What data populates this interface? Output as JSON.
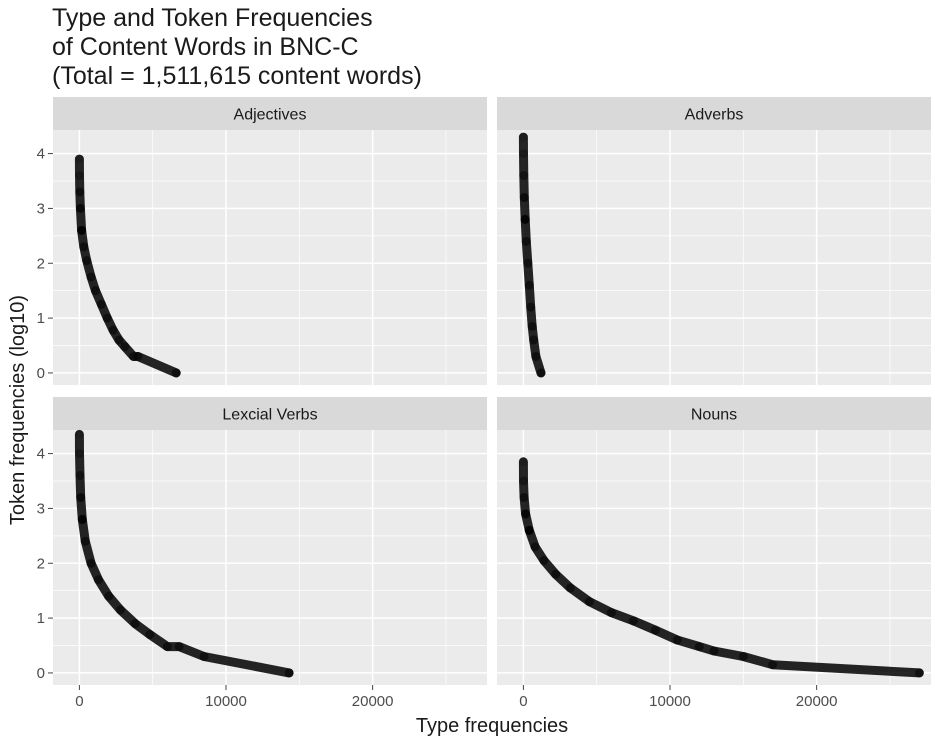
{
  "chart_data": {
    "type": "scatter",
    "title_lines": [
      "Type and Token Frequencies",
      "of Content Words in BNC-C",
      "(Total = 1,511,615 content words)"
    ],
    "xlabel": "Type frequencies",
    "ylabel": "Token frequencies (log10)",
    "xlim": [
      -1800,
      27800
    ],
    "ylim": [
      -0.22,
      4.43
    ],
    "x_ticks": [
      0,
      10000,
      20000
    ],
    "x_tick_labels": [
      "0",
      "10000",
      "20000"
    ],
    "y_ticks": [
      0,
      1,
      2,
      3,
      4
    ],
    "y_tick_labels": [
      "0",
      "1",
      "2",
      "3",
      "4"
    ],
    "grid": true,
    "point_color": "#000000",
    "panel_background": "#ebebeb",
    "strip_background": "#d9d9d9",
    "panels": [
      {
        "name": "Adjectives",
        "n_types": 6600,
        "max_token_log10": 3.9,
        "points": [
          [
            0,
            3.9
          ],
          [
            10,
            3.6
          ],
          [
            30,
            3.3
          ],
          [
            70,
            3.0
          ],
          [
            150,
            2.6
          ],
          [
            300,
            2.3
          ],
          [
            500,
            2.05
          ],
          [
            800,
            1.75
          ],
          [
            1100,
            1.5
          ],
          [
            1500,
            1.25
          ],
          [
            1900,
            1.0
          ],
          [
            2300,
            0.78
          ],
          [
            2700,
            0.6
          ],
          [
            3100,
            0.48
          ],
          [
            3700,
            0.3
          ],
          [
            4000,
            0.3
          ],
          [
            6600,
            0.0
          ]
        ]
      },
      {
        "name": "Adverbs",
        "n_types": 1200,
        "max_token_log10": 4.3,
        "points": [
          [
            0,
            4.3
          ],
          [
            10,
            4.0
          ],
          [
            25,
            3.6
          ],
          [
            60,
            3.2
          ],
          [
            120,
            2.8
          ],
          [
            200,
            2.4
          ],
          [
            300,
            2.0
          ],
          [
            400,
            1.6
          ],
          [
            500,
            1.2
          ],
          [
            600,
            0.85
          ],
          [
            700,
            0.6
          ],
          [
            850,
            0.3
          ],
          [
            1200,
            0.0
          ]
        ]
      },
      {
        "name": "Lexcial Verbs",
        "n_types": 14300,
        "max_token_log10": 4.35,
        "points": [
          [
            0,
            4.35
          ],
          [
            10,
            4.0
          ],
          [
            40,
            3.6
          ],
          [
            90,
            3.2
          ],
          [
            200,
            2.8
          ],
          [
            400,
            2.4
          ],
          [
            800,
            2.0
          ],
          [
            1300,
            1.7
          ],
          [
            2000,
            1.4
          ],
          [
            2800,
            1.15
          ],
          [
            3800,
            0.9
          ],
          [
            4800,
            0.7
          ],
          [
            6000,
            0.48
          ],
          [
            6800,
            0.48
          ],
          [
            8500,
            0.3
          ],
          [
            14300,
            0.0
          ]
        ]
      },
      {
        "name": "Nouns",
        "n_types": 27000,
        "max_token_log10": 3.85,
        "points": [
          [
            0,
            3.85
          ],
          [
            10,
            3.5
          ],
          [
            50,
            3.2
          ],
          [
            150,
            2.9
          ],
          [
            400,
            2.6
          ],
          [
            800,
            2.3
          ],
          [
            1400,
            2.05
          ],
          [
            2200,
            1.8
          ],
          [
            3200,
            1.55
          ],
          [
            4500,
            1.3
          ],
          [
            6000,
            1.1
          ],
          [
            7500,
            0.95
          ],
          [
            9000,
            0.78
          ],
          [
            10500,
            0.6
          ],
          [
            12000,
            0.48
          ],
          [
            13000,
            0.4
          ],
          [
            15000,
            0.3
          ],
          [
            17000,
            0.15
          ],
          [
            27000,
            0.0
          ]
        ]
      }
    ]
  }
}
